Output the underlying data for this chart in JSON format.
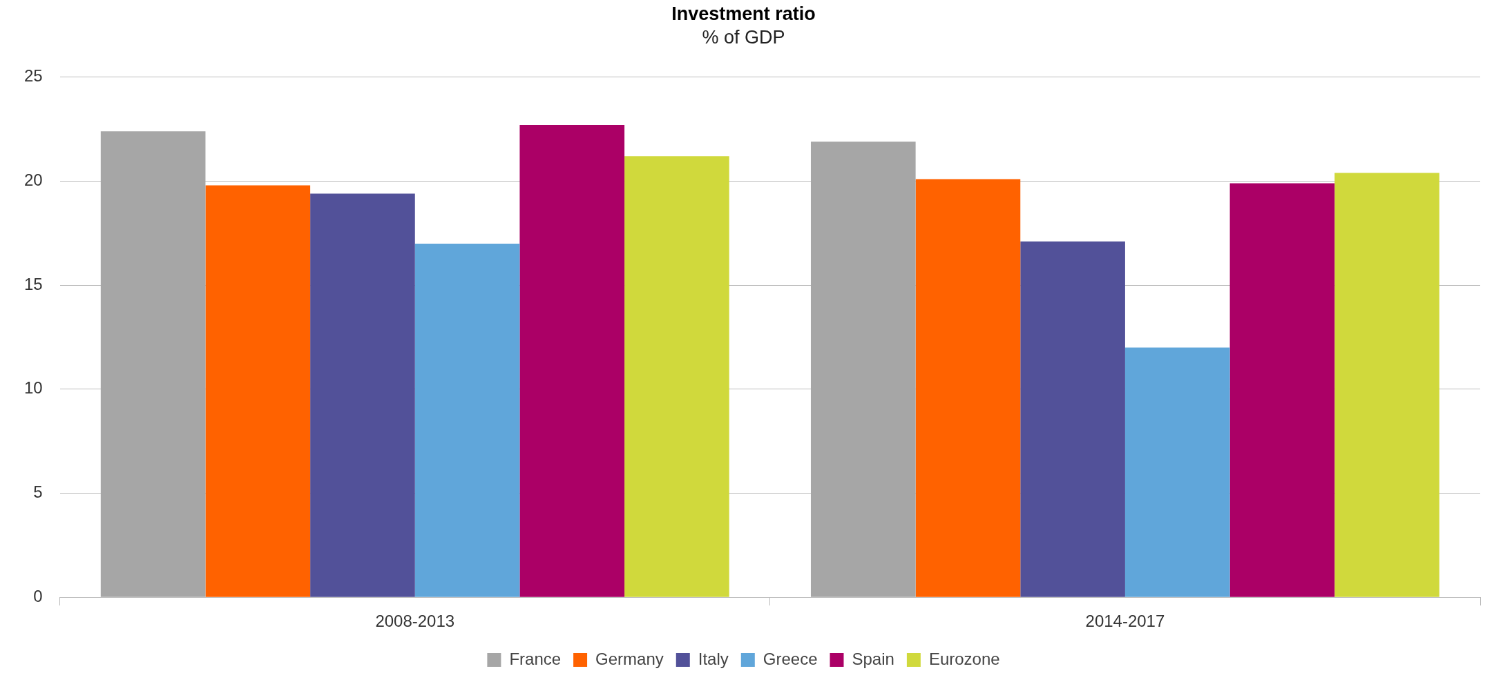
{
  "chart_data": {
    "type": "bar",
    "title": "Investment ratio",
    "subtitle": "% of GDP",
    "categories": [
      "2008-2013",
      "2014-2017"
    ],
    "series": [
      {
        "name": "France",
        "color": "#a6a6a6",
        "values": [
          22.4,
          21.9
        ]
      },
      {
        "name": "Germany",
        "color": "#ff6200",
        "values": [
          19.8,
          20.1
        ]
      },
      {
        "name": "Italy",
        "color": "#525199",
        "values": [
          19.4,
          17.1
        ]
      },
      {
        "name": "Greece",
        "color": "#60a6da",
        "values": [
          17.0,
          12.0
        ]
      },
      {
        "name": "Spain",
        "color": "#ab0066",
        "values": [
          22.7,
          19.9
        ]
      },
      {
        "name": "Eurozone",
        "color": "#d0d93c",
        "values": [
          21.2,
          20.4
        ]
      }
    ],
    "ylim": [
      0,
      25
    ],
    "yticks": [
      0,
      5,
      10,
      15,
      20,
      25
    ],
    "grid": "y",
    "legend": "bottom"
  }
}
